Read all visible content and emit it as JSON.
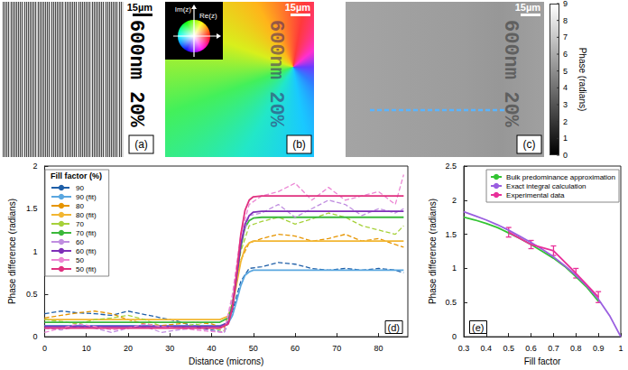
{
  "image_panels": [
    {
      "letter": "(a)",
      "scale_bar": "15µm",
      "sample_label": "600nm 20%"
    },
    {
      "letter": "(b)",
      "scale_bar": "15µm",
      "sample_label": "600nm 20%",
      "color_wheel": {
        "imag_axis": "Im(z)",
        "real_axis": "Re(z)"
      }
    },
    {
      "letter": "(c)",
      "scale_bar": "15µm",
      "sample_label": "600nm 20%",
      "colorbar": {
        "title": "Phase (radians)",
        "range": [
          0,
          9
        ],
        "ticks": [
          0,
          1,
          2,
          3,
          4,
          5,
          6,
          7,
          8,
          9
        ]
      }
    }
  ],
  "chart_data": [
    {
      "type": "line",
      "annotations": [
        "(d)"
      ],
      "x_label": "Distance (microns)",
      "y_label": "Phase difference (radians)",
      "xlim": [
        0,
        87
      ],
      "xticks": [
        0,
        10,
        20,
        30,
        40,
        50,
        60,
        70,
        80
      ],
      "ylim": [
        0,
        2
      ],
      "yticks": [
        0,
        0.5,
        1,
        1.5,
        2
      ],
      "grid": false,
      "legend": "top-left",
      "legend_title": "Fill factor (%)",
      "series": [
        {
          "name": "90",
          "color": "#1f5fa8",
          "line_style": "dashed",
          "x": [
            0,
            4,
            8,
            12,
            16,
            20,
            24,
            28,
            32,
            36,
            40,
            43,
            45,
            47,
            49,
            52,
            56,
            60,
            64,
            68,
            72,
            76,
            80,
            84,
            86
          ],
          "values": [
            0.27,
            0.3,
            0.28,
            0.27,
            0.25,
            0.3,
            0.26,
            0.22,
            0.18,
            0.12,
            0.08,
            0.05,
            0.3,
            0.65,
            0.8,
            0.82,
            0.87,
            0.85,
            0.8,
            0.78,
            0.8,
            0.78,
            0.8,
            0.78,
            0.75
          ]
        },
        {
          "name": "90 (fit)",
          "color": "#5aa7e0",
          "line_style": "solid",
          "x": [
            0,
            42,
            44,
            45,
            46,
            47,
            48,
            49,
            50,
            52,
            86
          ],
          "values": [
            0.13,
            0.13,
            0.16,
            0.25,
            0.42,
            0.6,
            0.72,
            0.76,
            0.78,
            0.78,
            0.78
          ]
        },
        {
          "name": "80",
          "color": "#e69500",
          "line_style": "dashed",
          "x": [
            0,
            4,
            8,
            12,
            16,
            20,
            24,
            28,
            32,
            36,
            40,
            43,
            45,
            47,
            49,
            52,
            56,
            60,
            64,
            68,
            72,
            76,
            80,
            84,
            86
          ],
          "values": [
            0.22,
            0.25,
            0.28,
            0.3,
            0.27,
            0.2,
            0.15,
            0.13,
            0.15,
            0.17,
            0.15,
            0.1,
            0.4,
            0.9,
            1.1,
            1.15,
            1.2,
            1.18,
            1.12,
            1.15,
            1.2,
            1.12,
            1.15,
            1.08,
            1.05
          ]
        },
        {
          "name": "80 (fit)",
          "color": "#f2b632",
          "line_style": "solid",
          "x": [
            0,
            42,
            44,
            45,
            46,
            47,
            48,
            49,
            50,
            52,
            86
          ],
          "values": [
            0.2,
            0.2,
            0.24,
            0.36,
            0.62,
            0.88,
            1.04,
            1.1,
            1.12,
            1.12,
            1.12
          ]
        },
        {
          "name": "70",
          "color": "#a6d13a",
          "line_style": "dashed",
          "x": [
            0,
            4,
            8,
            12,
            16,
            20,
            24,
            28,
            32,
            36,
            40,
            43,
            45,
            47,
            49,
            52,
            56,
            60,
            64,
            68,
            72,
            76,
            80,
            84,
            86
          ],
          "values": [
            0.2,
            0.18,
            0.15,
            0.2,
            0.22,
            0.25,
            0.2,
            0.12,
            0.1,
            0.15,
            0.1,
            0.07,
            0.4,
            1.0,
            1.3,
            1.35,
            1.4,
            1.32,
            1.38,
            1.45,
            1.4,
            1.3,
            1.25,
            1.2,
            1.3
          ]
        },
        {
          "name": "70 (fit)",
          "color": "#3bb83b",
          "line_style": "solid",
          "x": [
            0,
            42,
            44,
            45,
            46,
            47,
            48,
            49,
            50,
            52,
            86
          ],
          "values": [
            0.17,
            0.17,
            0.22,
            0.38,
            0.72,
            1.05,
            1.28,
            1.36,
            1.39,
            1.4,
            1.4
          ]
        },
        {
          "name": "60",
          "color": "#c08ee0",
          "line_style": "dashed",
          "x": [
            0,
            4,
            8,
            12,
            16,
            20,
            24,
            28,
            32,
            36,
            40,
            43,
            45,
            47,
            49,
            52,
            56,
            60,
            64,
            68,
            72,
            76,
            80,
            84,
            86
          ],
          "values": [
            0.1,
            0.08,
            0.12,
            0.1,
            0.05,
            0.1,
            0.12,
            0.05,
            0.08,
            0.1,
            0.07,
            0.05,
            0.45,
            1.1,
            1.42,
            1.45,
            1.55,
            1.4,
            1.5,
            1.6,
            1.55,
            1.42,
            1.5,
            1.45,
            1.5
          ]
        },
        {
          "name": "60 (fit)",
          "color": "#7e2fb8",
          "line_style": "solid",
          "x": [
            0,
            42,
            44,
            45,
            46,
            47,
            48,
            49,
            50,
            52,
            86
          ],
          "values": [
            0.12,
            0.12,
            0.17,
            0.34,
            0.7,
            1.08,
            1.32,
            1.42,
            1.46,
            1.47,
            1.47
          ]
        },
        {
          "name": "50",
          "color": "#ec86d4",
          "line_style": "dashed",
          "x": [
            0,
            4,
            8,
            12,
            16,
            20,
            24,
            28,
            32,
            36,
            40,
            43,
            45,
            47,
            49,
            52,
            56,
            60,
            64,
            68,
            72,
            76,
            80,
            84,
            86
          ],
          "values": [
            0.05,
            0.1,
            0.15,
            0.12,
            0.08,
            0.1,
            0.15,
            0.12,
            0.1,
            0.08,
            0.06,
            0.05,
            0.5,
            1.2,
            1.55,
            1.65,
            1.7,
            1.8,
            1.6,
            1.75,
            1.6,
            1.65,
            1.7,
            1.55,
            1.9
          ]
        },
        {
          "name": "50 (fit)",
          "color": "#e0307f",
          "line_style": "solid",
          "x": [
            0,
            42,
            44,
            45,
            46,
            47,
            48,
            49,
            50,
            52,
            86
          ],
          "values": [
            0.1,
            0.1,
            0.15,
            0.34,
            0.75,
            1.2,
            1.48,
            1.6,
            1.64,
            1.65,
            1.65
          ]
        }
      ]
    },
    {
      "type": "line",
      "annotations": [
        "(e)"
      ],
      "x_label": "Fill factor",
      "y_label": "Phase difference (radians)",
      "xlim": [
        0.3,
        1
      ],
      "xticks": [
        0.3,
        0.4,
        0.5,
        0.6,
        0.7,
        0.8,
        0.9,
        1
      ],
      "ylim": [
        0,
        2.5
      ],
      "yticks": [
        0,
        0.5,
        1,
        1.5,
        2,
        2.5
      ],
      "grid": false,
      "legend": "top-right",
      "series": [
        {
          "name": "Bulk predominance approximation",
          "color": "#33c433",
          "line_style": "solid",
          "x": [
            0.3,
            0.35,
            0.4,
            0.45,
            0.5,
            0.55,
            0.6,
            0.65,
            0.7,
            0.75,
            0.8,
            0.85,
            0.9
          ],
          "values": [
            1.75,
            1.71,
            1.66,
            1.6,
            1.52,
            1.44,
            1.35,
            1.25,
            1.15,
            1.03,
            0.88,
            0.72,
            0.52
          ]
        },
        {
          "name": "Exact integral calculation",
          "color": "#9a5ee0",
          "line_style": "solid",
          "x": [
            0.3,
            0.35,
            0.4,
            0.45,
            0.5,
            0.55,
            0.6,
            0.65,
            0.7,
            0.75,
            0.8,
            0.85,
            0.9,
            0.95,
            1
          ],
          "values": [
            1.83,
            1.77,
            1.71,
            1.64,
            1.56,
            1.47,
            1.38,
            1.28,
            1.17,
            1.04,
            0.9,
            0.74,
            0.55,
            0.31,
            0
          ]
        },
        {
          "name": "Experimental data",
          "color": "#e8309a",
          "line_style": "solid",
          "x": [
            0.5,
            0.6,
            0.7,
            0.8,
            0.9
          ],
          "values": [
            1.53,
            1.35,
            1.26,
            0.93,
            0.58
          ],
          "error": [
            0.07,
            0.06,
            0.07,
            0.07,
            0.08
          ]
        }
      ]
    }
  ]
}
